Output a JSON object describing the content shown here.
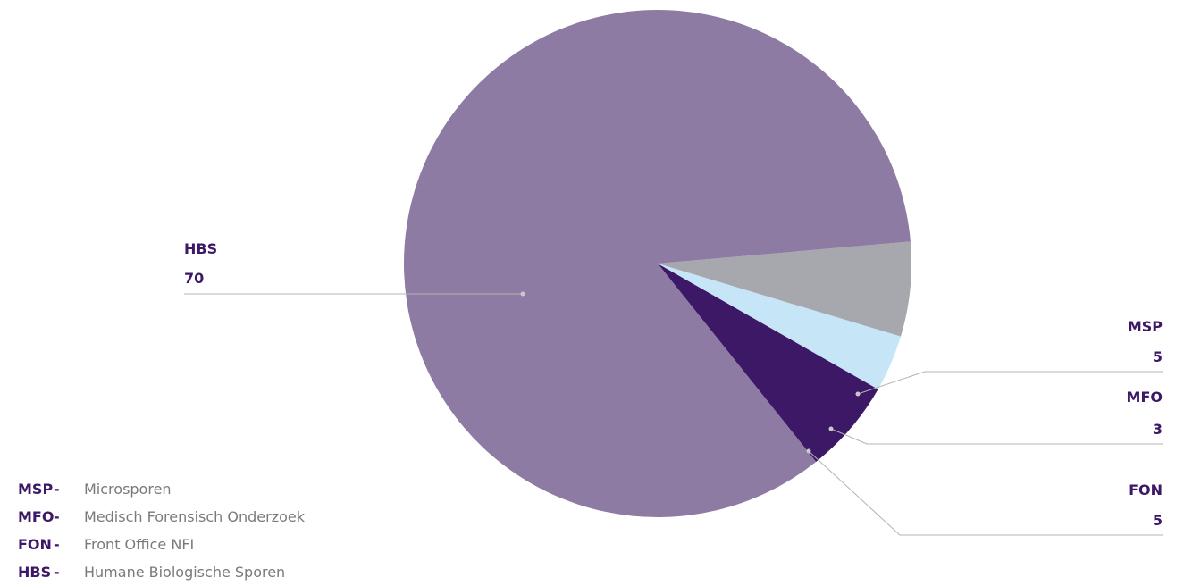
{
  "chart_data": {
    "type": "pie",
    "title": "",
    "slices": [
      {
        "label": "HBS",
        "value": 70,
        "color": "#8e7ba3"
      },
      {
        "label": "MSP",
        "value": 5,
        "color": "#a6a8ad"
      },
      {
        "label": "MFO",
        "value": 3,
        "color": "#c6e6f8"
      },
      {
        "label": "FON",
        "value": 5,
        "color": "#3d1866"
      }
    ],
    "callouts": [
      {
        "code": "HBS",
        "value": "70"
      },
      {
        "code": "MSP",
        "value": "5"
      },
      {
        "code": "MFO",
        "value": "3"
      },
      {
        "code": "FON",
        "value": "5"
      }
    ]
  },
  "legend": [
    {
      "code": "MSP",
      "dash": "-",
      "desc": "Microsporen"
    },
    {
      "code": "MFO",
      "dash": "-",
      "desc": "Medisch Forensisch Onderzoek"
    },
    {
      "code": "FON",
      "dash": "-",
      "desc": "Front Office NFI"
    },
    {
      "code": "HBS",
      "dash": "-",
      "desc": "Humane Biologische Sporen"
    }
  ]
}
